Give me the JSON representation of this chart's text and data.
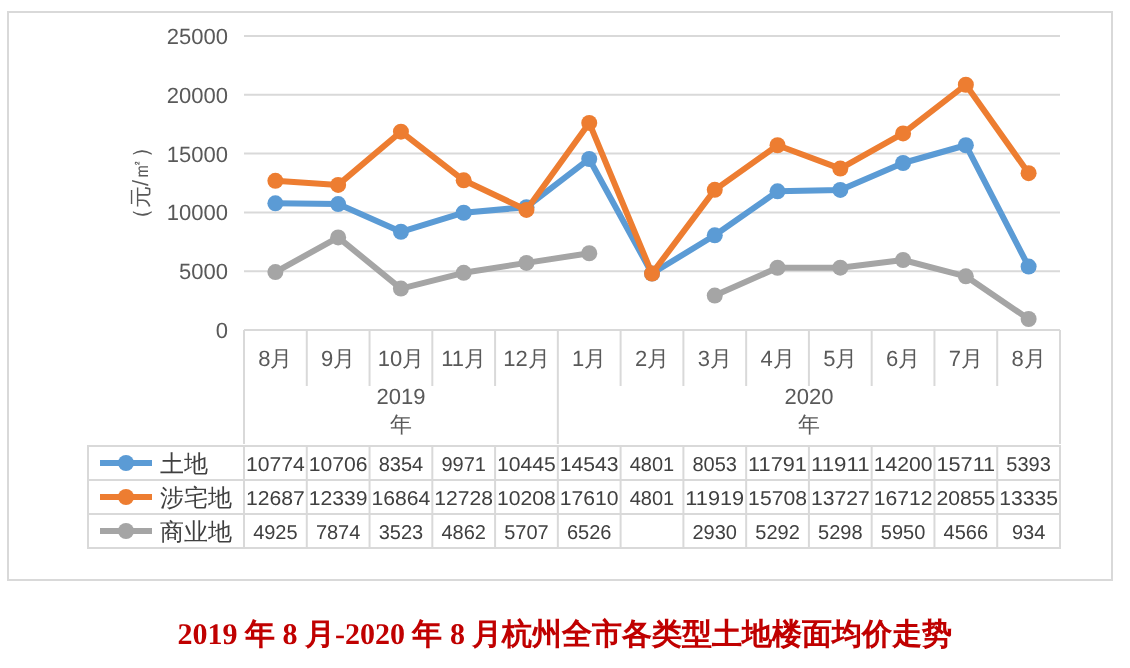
{
  "chart_data": {
    "type": "line",
    "title": "2019 年 8 月-2020 年 8 月杭州全市各类型土地楼面均价走势",
    "ylabel": "（元/㎡）",
    "categories": [
      "8月",
      "9月",
      "10月",
      "11月",
      "12月",
      "1月",
      "2月",
      "3月",
      "4月",
      "5月",
      "6月",
      "7月",
      "8月"
    ],
    "series": [
      {
        "name": "土地",
        "color": "#5b9bd5",
        "values": [
          10774,
          10706,
          8354,
          9971,
          10445,
          14543,
          4801,
          8053,
          11791,
          11911,
          14200,
          15711,
          5393
        ]
      },
      {
        "name": "涉宅地",
        "color": "#ed7d31",
        "values": [
          12687,
          12339,
          16864,
          12728,
          10208,
          17610,
          4801,
          11919,
          15708,
          13727,
          16712,
          20855,
          13335
        ]
      },
      {
        "name": "商业地",
        "color": "#a5a5a5",
        "values": [
          4925,
          7874,
          3523,
          4862,
          5707,
          6526,
          null,
          2930,
          5292,
          5298,
          5950,
          4566,
          934
        ]
      }
    ],
    "annotations": [
      "2019年",
      "2020年"
    ],
    "ylim": [
      0,
      25000
    ],
    "yticks": [
      0,
      5000,
      10000,
      15000,
      20000,
      25000
    ],
    "grid": "y",
    "marker": "circle",
    "line_style": "solid",
    "data_labels": true,
    "legend": "bottom"
  }
}
